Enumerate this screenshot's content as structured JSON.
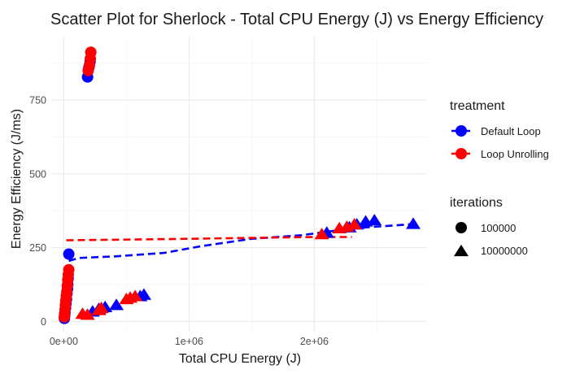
{
  "chart_data": {
    "type": "scatter",
    "title": "Scatter Plot for Sherlock - Total CPU Energy (J) vs Energy Efficiency",
    "xlabel": "Total CPU Energy (J)",
    "ylabel": "Energy Efficiency (J/ms)",
    "xlim": [
      -100000,
      2900000
    ],
    "ylim": [
      -35,
      965
    ],
    "x_ticks": [
      {
        "value": 0,
        "label": "0e+00"
      },
      {
        "value": 1000000,
        "label": "1e+06"
      },
      {
        "value": 2000000,
        "label": "2e+06"
      }
    ],
    "y_ticks": [
      {
        "value": 0,
        "label": "0"
      },
      {
        "value": 250,
        "label": "250"
      },
      {
        "value": 500,
        "label": "500"
      },
      {
        "value": 750,
        "label": "750"
      }
    ],
    "grid": true,
    "legend": {
      "placement": "right",
      "groups": [
        {
          "title": "treatment",
          "entries": [
            {
              "label": "Default Loop",
              "color": "#0000ff",
              "shape": "circle",
              "line": true
            },
            {
              "label": "Loop Unrolling",
              "color": "#ff0000",
              "shape": "circle",
              "line": true
            }
          ]
        },
        {
          "title": "iterations",
          "entries": [
            {
              "label": "100000",
              "color": "#000000",
              "shape": "circle",
              "line": false
            },
            {
              "label": "10000000",
              "color": "#000000",
              "shape": "triangle",
              "line": false
            }
          ]
        }
      ]
    },
    "series": [
      {
        "name": "Default Loop",
        "iterations": "100000",
        "color": "#0000ff",
        "shape": "circle",
        "points": [
          [
            5000,
            10
          ],
          [
            8000,
            20
          ],
          [
            10000,
            30
          ],
          [
            14000,
            45
          ],
          [
            18000,
            60
          ],
          [
            22000,
            75
          ],
          [
            26000,
            95
          ],
          [
            30000,
            110
          ],
          [
            32000,
            125
          ],
          [
            35000,
            145
          ],
          [
            40000,
            228
          ],
          [
            190000,
            828
          ],
          [
            200000,
            860
          ],
          [
            210000,
            880
          ]
        ]
      },
      {
        "name": "Loop Unrolling",
        "iterations": "100000",
        "color": "#ff0000",
        "shape": "circle",
        "points": [
          [
            4000,
            15
          ],
          [
            7000,
            25
          ],
          [
            10000,
            40
          ],
          [
            13000,
            55
          ],
          [
            16000,
            70
          ],
          [
            20000,
            85
          ],
          [
            24000,
            100
          ],
          [
            28000,
            120
          ],
          [
            32000,
            140
          ],
          [
            36000,
            158
          ],
          [
            40000,
            175
          ],
          [
            195000,
            850
          ],
          [
            205000,
            868
          ],
          [
            212000,
            890
          ],
          [
            216000,
            912
          ]
        ]
      },
      {
        "name": "Default Loop",
        "iterations": "10000000",
        "color": "#0000ff",
        "shape": "triangle",
        "points": [
          [
            230000,
            33
          ],
          [
            280000,
            42
          ],
          [
            330000,
            48
          ],
          [
            420000,
            55
          ],
          [
            610000,
            85
          ],
          [
            640000,
            90
          ],
          [
            2100000,
            300
          ],
          [
            2280000,
            318
          ],
          [
            2340000,
            328
          ],
          [
            2410000,
            338
          ],
          [
            2480000,
            342
          ],
          [
            2790000,
            330
          ]
        ]
      },
      {
        "name": "Loop Unrolling",
        "iterations": "10000000",
        "color": "#ff0000",
        "shape": "triangle",
        "points": [
          [
            150000,
            25
          ],
          [
            190000,
            22
          ],
          [
            280000,
            38
          ],
          [
            300000,
            45
          ],
          [
            500000,
            75
          ],
          [
            530000,
            80
          ],
          [
            570000,
            85
          ],
          [
            2060000,
            295
          ],
          [
            2200000,
            315
          ],
          [
            2260000,
            320
          ],
          [
            2320000,
            328
          ]
        ]
      }
    ],
    "trend_lines": [
      {
        "name": "Default Loop",
        "color": "#0000ff",
        "dash": "dashed",
        "points": [
          [
            40000,
            205
          ],
          [
            120000,
            215
          ],
          [
            400000,
            220
          ],
          [
            800000,
            232
          ],
          [
            1100000,
            255
          ],
          [
            1500000,
            280
          ],
          [
            1900000,
            292
          ],
          [
            2300000,
            315
          ],
          [
            2800000,
            330
          ]
        ]
      },
      {
        "name": "Loop Unrolling",
        "color": "#ff0000",
        "dash": "dashed",
        "points": [
          [
            20000,
            275
          ],
          [
            500000,
            277
          ],
          [
            1000000,
            280
          ],
          [
            1500000,
            283
          ],
          [
            2000000,
            286
          ],
          [
            2300000,
            286
          ]
        ]
      }
    ]
  }
}
